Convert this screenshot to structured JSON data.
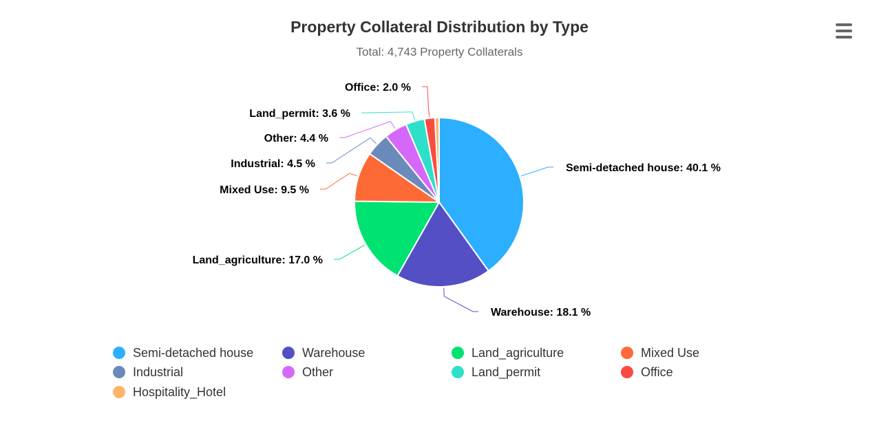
{
  "chart_data": {
    "type": "pie",
    "title": "Property Collateral Distribution by Type",
    "subtitle": "Total: 4,743 Property Collaterals",
    "legend_position": "bottom",
    "slices": [
      {
        "name": "Semi-detached house",
        "value": 40.1,
        "label": "Semi-detached house: 40.1 %",
        "color": "#2caffe"
      },
      {
        "name": "Warehouse",
        "value": 18.1,
        "label": "Warehouse: 18.1 %",
        "color": "#544fc5"
      },
      {
        "name": "Land_agriculture",
        "value": 17.0,
        "label": "Land_agriculture: 17.0 %",
        "color": "#00e272"
      },
      {
        "name": "Mixed Use",
        "value": 9.5,
        "label": "Mixed Use: 9.5 %",
        "color": "#fe6a35"
      },
      {
        "name": "Industrial",
        "value": 4.5,
        "label": "Industrial: 4.5 %",
        "color": "#6b8abc"
      },
      {
        "name": "Other",
        "value": 4.4,
        "label": "Other: 4.4 %",
        "color": "#d568fb"
      },
      {
        "name": "Land_permit",
        "value": 3.6,
        "label": "Land_permit: 3.6 %",
        "color": "#2ee0ca"
      },
      {
        "name": "Office",
        "value": 2.0,
        "label": "Office: 2.0 %",
        "color": "#fa4b42"
      },
      {
        "name": "Hospitality_Hotel",
        "value": 0.8,
        "label": "",
        "color": "#feb56a"
      }
    ]
  },
  "icons": {
    "menu": "hamburger-menu-icon"
  }
}
